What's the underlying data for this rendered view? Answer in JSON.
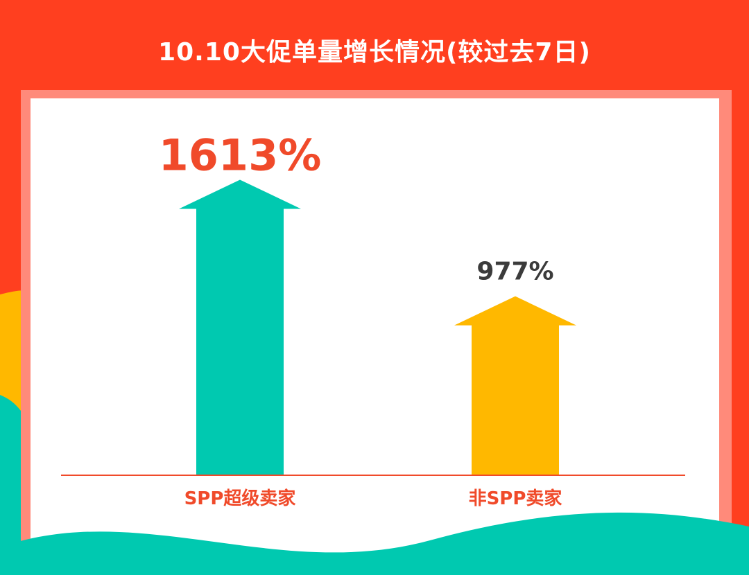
{
  "colors": {
    "background_red": "#ff3f1f",
    "panel_border": "#ff8a7a",
    "teal": "#00c9b0",
    "yellow": "#ffb800",
    "axis_line": "#f04a2a",
    "label_red": "#f04a2a",
    "value_dark": "#3b3b3b"
  },
  "chart_data": {
    "type": "bar",
    "title": "10.10大促单量增长情况(较过去7日)",
    "categories": [
      "SPP超级卖家",
      "非SPP卖家"
    ],
    "series": [
      {
        "values": [
          1613,
          977
        ],
        "display_labels": [
          "1613%",
          "977%"
        ]
      }
    ],
    "unit": "%",
    "ylim": [
      0,
      1800
    ],
    "grid": false,
    "legend": "none",
    "bar_style": "arrow",
    "bar_colors": [
      "#00c9b0",
      "#ffb800"
    ],
    "value_label_colors": [
      "#f04a2a",
      "#3b3b3b"
    ]
  }
}
